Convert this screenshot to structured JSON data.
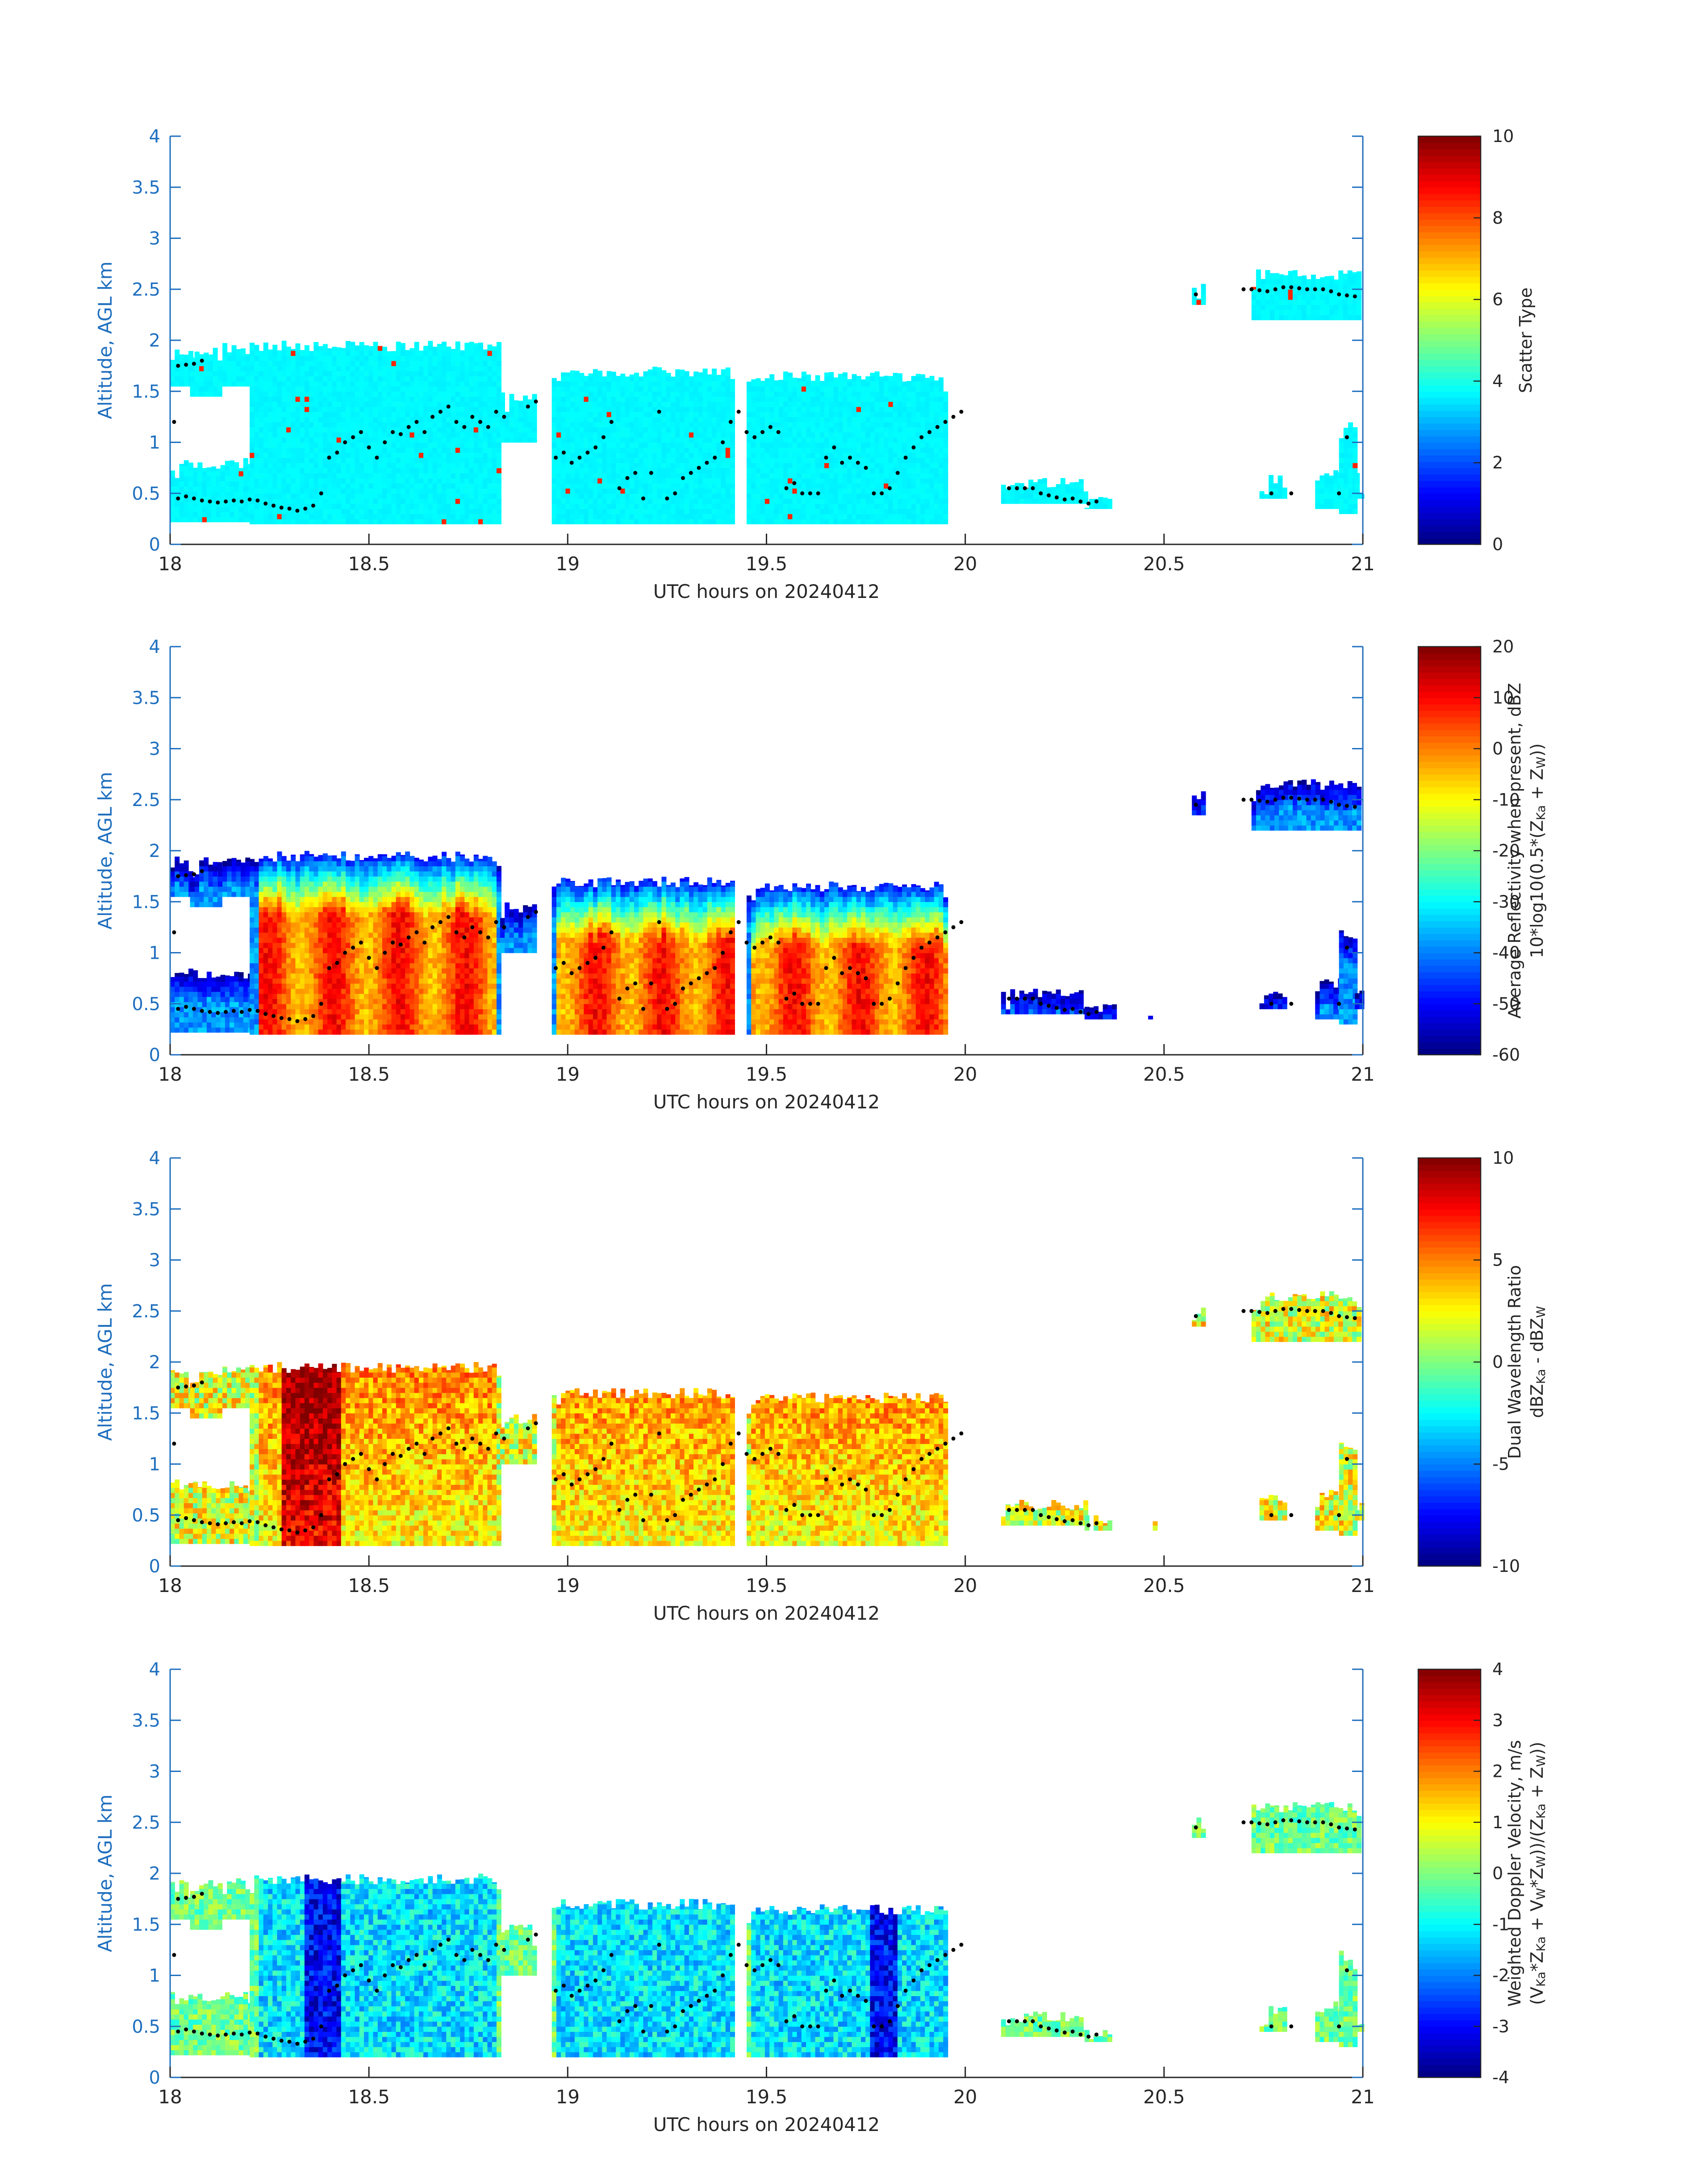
{
  "chart_data": [
    {
      "type": "heatmap",
      "ylabel": "Altitude, AGL km",
      "xlabel": "UTC hours on 20240412",
      "xlim": [
        18,
        21
      ],
      "ylim": [
        0,
        4
      ],
      "xticks": [
        "18",
        "18.5",
        "19",
        "19.5",
        "20",
        "20.5",
        "21"
      ],
      "yticks": [
        "0",
        "0.5",
        "1",
        "1.5",
        "2",
        "2.5",
        "3",
        "3.5",
        "4"
      ],
      "colorbar": {
        "label_lines": [
          "Scatter Type"
        ],
        "range": [
          0,
          10
        ],
        "ticks": [
          "0",
          "2",
          "4",
          "6",
          "8",
          "10"
        ]
      },
      "colormap": "jet",
      "mode": "scatter"
    },
    {
      "type": "heatmap",
      "ylabel": "Altitude, AGL km",
      "xlabel": "UTC hours on 20240412",
      "xlim": [
        18,
        21
      ],
      "ylim": [
        0,
        4
      ],
      "xticks": [
        "18",
        "18.5",
        "19",
        "19.5",
        "20",
        "20.5",
        "21"
      ],
      "yticks": [
        "0",
        "0.5",
        "1",
        "1.5",
        "2",
        "2.5",
        "3",
        "3.5",
        "4"
      ],
      "colorbar": {
        "label_lines": [
          "Average Reflectivity when present, dBZ",
          "10*log10(0.5*(Z_Ka + Z_W))"
        ],
        "range": [
          -60,
          20
        ],
        "ticks": [
          "-60",
          "-50",
          "-40",
          "-30",
          "-20",
          "-10",
          "0",
          "10",
          "20"
        ]
      },
      "colormap": "jet",
      "mode": "reflectivity"
    },
    {
      "type": "heatmap",
      "ylabel": "Altitude, AGL km",
      "xlabel": "UTC hours on 20240412",
      "xlim": [
        18,
        21
      ],
      "ylim": [
        0,
        4
      ],
      "xticks": [
        "18",
        "18.5",
        "19",
        "19.5",
        "20",
        "20.5",
        "21"
      ],
      "yticks": [
        "0",
        "0.5",
        "1",
        "1.5",
        "2",
        "2.5",
        "3",
        "3.5",
        "4"
      ],
      "colorbar": {
        "label_lines": [
          "Dual Wavelength Ratio",
          "dBZ_Ka - dBZ_W"
        ],
        "range": [
          -10,
          10
        ],
        "ticks": [
          "-10",
          "-5",
          "0",
          "5",
          "10"
        ]
      },
      "colormap": "jet",
      "mode": "dwr"
    },
    {
      "type": "heatmap",
      "ylabel": "Altitude, AGL km",
      "xlabel": "UTC hours on 20240412",
      "xlim": [
        18,
        21
      ],
      "ylim": [
        0,
        4
      ],
      "xticks": [
        "18",
        "18.5",
        "19",
        "19.5",
        "20",
        "20.5",
        "21"
      ],
      "yticks": [
        "0",
        "0.5",
        "1",
        "1.5",
        "2",
        "2.5",
        "3",
        "3.5",
        "4"
      ],
      "colorbar": {
        "label_lines": [
          "Weighted Doppler Velocity, m/s",
          "(V_Ka*Z_Ka + V_W*Z_W))/(Z_Ka + Z_W))"
        ],
        "range": [
          -4,
          4
        ],
        "ticks": [
          "-4",
          "-3",
          "-2",
          "-1",
          "0",
          "1",
          "2",
          "3",
          "4"
        ]
      },
      "colormap": "jet",
      "mode": "velocity"
    }
  ],
  "cloud_segments": [
    {
      "t0": 18.0,
      "t1": 18.05,
      "base": 1.55,
      "top": 1.95
    },
    {
      "t0": 18.05,
      "t1": 18.12,
      "base": 1.45,
      "top": 1.95
    },
    {
      "t0": 18.12,
      "t1": 18.2,
      "base": 1.55,
      "top": 1.98
    },
    {
      "t0": 18.0,
      "t1": 18.2,
      "base": 0.22,
      "top": 0.85
    },
    {
      "t0": 18.2,
      "t1": 18.83,
      "base": 0.2,
      "top": 2.0
    },
    {
      "t0": 18.83,
      "t1": 18.92,
      "base": 1.0,
      "top": 1.5
    },
    {
      "t0": 18.96,
      "t1": 19.42,
      "base": 0.2,
      "top": 1.75
    },
    {
      "t0": 19.45,
      "t1": 19.95,
      "base": 0.2,
      "top": 1.7
    },
    {
      "t0": 20.09,
      "t1": 20.3,
      "base": 0.4,
      "top": 0.65
    },
    {
      "t0": 20.3,
      "t1": 20.38,
      "base": 0.35,
      "top": 0.5
    },
    {
      "t0": 20.46,
      "t1": 20.48,
      "base": 0.35,
      "top": 0.48
    },
    {
      "t0": 20.57,
      "t1": 20.6,
      "base": 2.35,
      "top": 2.6
    },
    {
      "t0": 20.72,
      "t1": 20.99,
      "base": 2.2,
      "top": 2.7
    },
    {
      "t0": 20.74,
      "t1": 20.8,
      "base": 0.45,
      "top": 0.7
    },
    {
      "t0": 20.88,
      "t1": 20.95,
      "base": 0.35,
      "top": 0.75
    },
    {
      "t0": 20.94,
      "t1": 20.98,
      "base": 0.3,
      "top": 1.25
    },
    {
      "t0": 20.98,
      "t1": 21.0,
      "base": 0.45,
      "top": 0.7
    }
  ],
  "markers": [
    [
      18.02,
      1.75
    ],
    [
      18.04,
      1.76
    ],
    [
      18.06,
      1.77
    ],
    [
      18.08,
      1.8
    ],
    [
      18.01,
      1.2
    ],
    [
      18.02,
      0.45
    ],
    [
      18.04,
      0.47
    ],
    [
      18.06,
      0.45
    ],
    [
      18.08,
      0.43
    ],
    [
      18.1,
      0.42
    ],
    [
      18.12,
      0.41
    ],
    [
      18.14,
      0.42
    ],
    [
      18.16,
      0.43
    ],
    [
      18.18,
      0.42
    ],
    [
      18.2,
      0.44
    ],
    [
      18.22,
      0.43
    ],
    [
      18.24,
      0.4
    ],
    [
      18.26,
      0.38
    ],
    [
      18.28,
      0.36
    ],
    [
      18.3,
      0.35
    ],
    [
      18.32,
      0.33
    ],
    [
      18.34,
      0.35
    ],
    [
      18.36,
      0.38
    ],
    [
      18.38,
      0.5
    ],
    [
      18.4,
      0.85
    ],
    [
      18.42,
      0.9
    ],
    [
      18.44,
      1.0
    ],
    [
      18.46,
      1.05
    ],
    [
      18.48,
      1.1
    ],
    [
      18.5,
      0.95
    ],
    [
      18.52,
      0.85
    ],
    [
      18.54,
      1.0
    ],
    [
      18.56,
      1.1
    ],
    [
      18.58,
      1.08
    ],
    [
      18.6,
      1.15
    ],
    [
      18.62,
      1.2
    ],
    [
      18.64,
      1.1
    ],
    [
      18.66,
      1.25
    ],
    [
      18.68,
      1.3
    ],
    [
      18.7,
      1.35
    ],
    [
      18.72,
      1.2
    ],
    [
      18.74,
      1.15
    ],
    [
      18.76,
      1.25
    ],
    [
      18.78,
      1.2
    ],
    [
      18.8,
      1.15
    ],
    [
      18.82,
      1.3
    ],
    [
      18.84,
      1.25
    ],
    [
      18.9,
      1.35
    ],
    [
      18.92,
      1.4
    ],
    [
      18.97,
      0.85
    ],
    [
      18.99,
      0.9
    ],
    [
      19.01,
      0.8
    ],
    [
      19.03,
      0.85
    ],
    [
      19.05,
      0.9
    ],
    [
      19.07,
      0.95
    ],
    [
      19.09,
      1.05
    ],
    [
      19.11,
      1.2
    ],
    [
      19.13,
      0.55
    ],
    [
      19.15,
      0.65
    ],
    [
      19.17,
      0.7
    ],
    [
      19.19,
      0.45
    ],
    [
      19.21,
      0.7
    ],
    [
      19.23,
      1.3
    ],
    [
      19.25,
      0.45
    ],
    [
      19.27,
      0.5
    ],
    [
      19.29,
      0.65
    ],
    [
      19.31,
      0.7
    ],
    [
      19.33,
      0.75
    ],
    [
      19.35,
      0.8
    ],
    [
      19.37,
      0.85
    ],
    [
      19.39,
      1.0
    ],
    [
      19.41,
      1.2
    ],
    [
      19.43,
      1.3
    ],
    [
      19.45,
      1.1
    ],
    [
      19.47,
      1.05
    ],
    [
      19.49,
      1.1
    ],
    [
      19.51,
      1.15
    ],
    [
      19.53,
      1.1
    ],
    [
      19.55,
      0.55
    ],
    [
      19.57,
      0.6
    ],
    [
      19.59,
      0.5
    ],
    [
      19.61,
      0.5
    ],
    [
      19.63,
      0.5
    ],
    [
      19.65,
      0.85
    ],
    [
      19.67,
      0.95
    ],
    [
      19.69,
      0.8
    ],
    [
      19.71,
      0.85
    ],
    [
      19.73,
      0.8
    ],
    [
      19.75,
      0.75
    ],
    [
      19.77,
      0.5
    ],
    [
      19.79,
      0.5
    ],
    [
      19.81,
      0.55
    ],
    [
      19.83,
      0.7
    ],
    [
      19.85,
      0.85
    ],
    [
      19.87,
      0.95
    ],
    [
      19.89,
      1.05
    ],
    [
      19.91,
      1.1
    ],
    [
      19.93,
      1.15
    ],
    [
      19.95,
      1.2
    ],
    [
      19.97,
      1.25
    ],
    [
      19.99,
      1.3
    ],
    [
      20.11,
      0.55
    ],
    [
      20.13,
      0.55
    ],
    [
      20.15,
      0.55
    ],
    [
      20.17,
      0.55
    ],
    [
      20.19,
      0.5
    ],
    [
      20.21,
      0.48
    ],
    [
      20.23,
      0.46
    ],
    [
      20.25,
      0.44
    ],
    [
      20.27,
      0.45
    ],
    [
      20.29,
      0.42
    ],
    [
      20.31,
      0.4
    ],
    [
      20.33,
      0.42
    ],
    [
      20.58,
      2.45
    ],
    [
      20.7,
      2.5
    ],
    [
      20.72,
      2.5
    ],
    [
      20.74,
      2.49
    ],
    [
      20.76,
      2.48
    ],
    [
      20.78,
      2.5
    ],
    [
      20.8,
      2.52
    ],
    [
      20.82,
      2.52
    ],
    [
      20.84,
      2.51
    ],
    [
      20.86,
      2.5
    ],
    [
      20.88,
      2.5
    ],
    [
      20.9,
      2.5
    ],
    [
      20.92,
      2.48
    ],
    [
      20.94,
      2.45
    ],
    [
      20.96,
      2.44
    ],
    [
      20.98,
      2.43
    ],
    [
      20.77,
      0.5
    ],
    [
      20.82,
      0.5
    ],
    [
      20.96,
      1.05
    ],
    [
      20.94,
      0.5
    ]
  ]
}
